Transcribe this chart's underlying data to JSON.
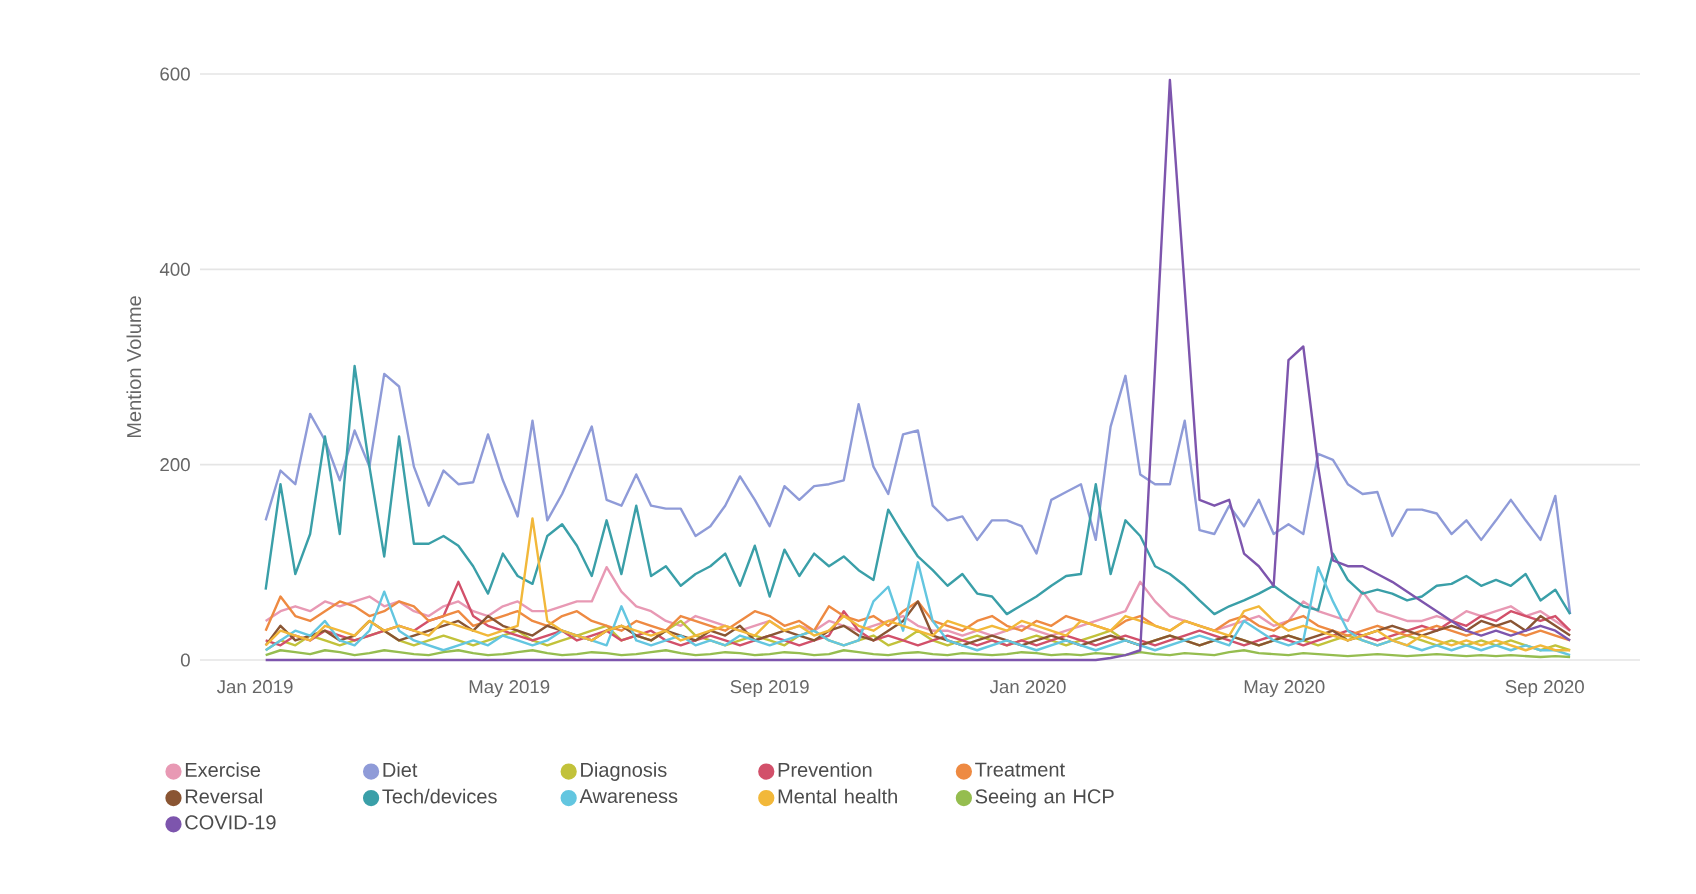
{
  "chart_data": {
    "type": "line",
    "ylabel": "Mention Volume",
    "x": [
      "2019-01-06",
      "2019-01-13",
      "2019-01-20",
      "2019-01-27",
      "2019-02-03",
      "2019-02-10",
      "2019-02-17",
      "2019-02-24",
      "2019-03-03",
      "2019-03-10",
      "2019-03-17",
      "2019-03-24",
      "2019-03-31",
      "2019-04-07",
      "2019-04-14",
      "2019-04-21",
      "2019-04-28",
      "2019-05-05",
      "2019-05-12",
      "2019-05-19",
      "2019-05-26",
      "2019-06-02",
      "2019-06-09",
      "2019-06-16",
      "2019-06-23",
      "2019-06-30",
      "2019-07-07",
      "2019-07-14",
      "2019-07-21",
      "2019-07-28",
      "2019-08-04",
      "2019-08-11",
      "2019-08-18",
      "2019-08-25",
      "2019-09-01",
      "2019-09-08",
      "2019-09-15",
      "2019-09-22",
      "2019-09-29",
      "2019-10-06",
      "2019-10-13",
      "2019-10-20",
      "2019-10-27",
      "2019-11-03",
      "2019-11-10",
      "2019-11-17",
      "2019-11-24",
      "2019-12-01",
      "2019-12-08",
      "2019-12-15",
      "2019-12-22",
      "2019-12-29",
      "2020-01-05",
      "2020-01-12",
      "2020-01-19",
      "2020-01-26",
      "2020-02-02",
      "2020-02-09",
      "2020-02-16",
      "2020-02-23",
      "2020-03-01",
      "2020-03-08",
      "2020-03-15",
      "2020-03-22",
      "2020-03-29",
      "2020-04-05",
      "2020-04-12",
      "2020-04-19",
      "2020-04-26",
      "2020-05-03",
      "2020-05-10",
      "2020-05-17",
      "2020-05-24",
      "2020-05-31",
      "2020-06-07",
      "2020-06-14",
      "2020-06-21",
      "2020-06-28",
      "2020-07-05",
      "2020-07-12",
      "2020-07-19",
      "2020-07-26",
      "2020-08-02",
      "2020-08-09",
      "2020-08-16",
      "2020-08-23",
      "2020-08-30",
      "2020-09-06",
      "2020-09-13"
    ],
    "xlim": [
      "2018-12-06",
      "2020-10-16"
    ],
    "xticks": [
      {
        "value": "2019-01-01",
        "label": "Jan 2019"
      },
      {
        "value": "2019-05-01",
        "label": "May 2019"
      },
      {
        "value": "2019-09-01",
        "label": "Sep 2019"
      },
      {
        "value": "2020-01-01",
        "label": "Jan 2020"
      },
      {
        "value": "2020-05-01",
        "label": "May 2020"
      },
      {
        "value": "2020-09-01",
        "label": "Sep 2020"
      }
    ],
    "ylim": [
      0,
      600
    ],
    "yticks": [
      0,
      200,
      400,
      600
    ],
    "grid": "y",
    "legend": "bottom",
    "series": [
      {
        "name": "Exercise",
        "color": "#e899b4",
        "values": [
          40,
          50,
          55,
          50,
          60,
          55,
          60,
          65,
          55,
          60,
          50,
          45,
          55,
          60,
          50,
          45,
          55,
          60,
          50,
          50,
          55,
          60,
          60,
          95,
          70,
          55,
          50,
          40,
          35,
          45,
          40,
          35,
          30,
          35,
          40,
          30,
          35,
          30,
          40,
          35,
          30,
          35,
          40,
          45,
          35,
          30,
          30,
          25,
          30,
          25,
          30,
          35,
          30,
          25,
          30,
          35,
          40,
          45,
          50,
          80,
          60,
          45,
          40,
          35,
          30,
          35,
          40,
          45,
          35,
          40,
          60,
          50,
          45,
          40,
          70,
          50,
          45,
          40,
          40,
          45,
          40,
          50,
          45,
          50,
          55,
          45,
          50,
          40,
          30
        ]
      },
      {
        "name": "Diet",
        "color": "#8f9bd8",
        "values": [
          143,
          194,
          180,
          252,
          225,
          184,
          235,
          198,
          293,
          280,
          198,
          158,
          194,
          180,
          182,
          231,
          184,
          147,
          245,
          143,
          170,
          204,
          239,
          164,
          158,
          190,
          158,
          155,
          155,
          127,
          137,
          158,
          188,
          164,
          137,
          178,
          164,
          178,
          180,
          184,
          262,
          198,
          170,
          231,
          235,
          158,
          143,
          147,
          123,
          143,
          143,
          137,
          109,
          164,
          172,
          180,
          123,
          239,
          291,
          190,
          180,
          180,
          245,
          133,
          129,
          158,
          137,
          164,
          129,
          139,
          129,
          211,
          205,
          180,
          170,
          172,
          127,
          154,
          154,
          150,
          129,
          143,
          123,
          143,
          164,
          143,
          123,
          168,
          47
        ]
      },
      {
        "name": "Diagnosis",
        "color": "#c2c23a",
        "values": [
          10,
          20,
          15,
          25,
          20,
          15,
          20,
          25,
          30,
          20,
          15,
          20,
          25,
          20,
          15,
          20,
          25,
          30,
          20,
          15,
          20,
          25,
          30,
          35,
          20,
          25,
          20,
          30,
          40,
          25,
          20,
          15,
          20,
          25,
          20,
          15,
          25,
          30,
          20,
          15,
          20,
          25,
          15,
          20,
          30,
          20,
          15,
          20,
          25,
          20,
          15,
          20,
          25,
          20,
          15,
          20,
          25,
          30,
          20,
          15,
          20,
          25,
          20,
          15,
          20,
          25,
          20,
          15,
          20,
          25,
          20,
          15,
          20,
          25,
          20,
          15,
          20,
          25,
          20,
          15,
          20,
          15,
          20,
          15,
          20,
          15,
          10,
          15,
          10
        ]
      },
      {
        "name": "Prevention",
        "color": "#d2506a",
        "values": [
          20,
          15,
          25,
          20,
          30,
          25,
          20,
          25,
          30,
          35,
          30,
          40,
          45,
          80,
          45,
          35,
          30,
          25,
          20,
          25,
          30,
          20,
          25,
          30,
          20,
          25,
          30,
          20,
          15,
          20,
          25,
          20,
          15,
          20,
          25,
          20,
          15,
          20,
          25,
          50,
          30,
          20,
          25,
          20,
          15,
          20,
          25,
          20,
          15,
          20,
          15,
          20,
          15,
          20,
          25,
          20,
          15,
          20,
          25,
          20,
          15,
          20,
          25,
          30,
          25,
          20,
          15,
          20,
          25,
          20,
          15,
          20,
          25,
          30,
          25,
          20,
          25,
          30,
          35,
          30,
          40,
          35,
          45,
          40,
          50,
          45,
          40,
          45,
          30
        ]
      },
      {
        "name": "Treatment",
        "color": "#ee8a42",
        "values": [
          30,
          65,
          45,
          40,
          50,
          60,
          55,
          45,
          50,
          60,
          55,
          40,
          45,
          50,
          35,
          40,
          45,
          50,
          40,
          35,
          45,
          50,
          40,
          35,
          30,
          40,
          35,
          30,
          45,
          40,
          35,
          30,
          40,
          50,
          45,
          35,
          40,
          30,
          55,
          45,
          40,
          45,
          35,
          50,
          60,
          40,
          35,
          30,
          40,
          45,
          35,
          30,
          40,
          35,
          45,
          40,
          35,
          30,
          40,
          45,
          35,
          30,
          40,
          35,
          30,
          40,
          45,
          35,
          30,
          40,
          45,
          35,
          30,
          25,
          30,
          35,
          30,
          25,
          30,
          35,
          30,
          25,
          30,
          35,
          30,
          25,
          30,
          25,
          20
        ]
      },
      {
        "name": "Reversal",
        "color": "#8a5533",
        "values": [
          15,
          35,
          20,
          25,
          30,
          20,
          25,
          40,
          30,
          20,
          25,
          30,
          35,
          40,
          30,
          45,
          35,
          30,
          25,
          35,
          30,
          25,
          20,
          30,
          35,
          25,
          20,
          30,
          25,
          20,
          30,
          25,
          35,
          20,
          25,
          30,
          25,
          20,
          30,
          35,
          25,
          20,
          30,
          40,
          60,
          25,
          20,
          15,
          20,
          25,
          20,
          15,
          20,
          25,
          20,
          15,
          20,
          25,
          20,
          15,
          20,
          25,
          20,
          15,
          20,
          25,
          20,
          15,
          20,
          25,
          20,
          25,
          30,
          20,
          25,
          30,
          35,
          30,
          25,
          30,
          35,
          30,
          40,
          35,
          40,
          30,
          45,
          35,
          25
        ]
      },
      {
        "name": "Tech/devices",
        "color": "#3a9fa8",
        "values": [
          72,
          180,
          88,
          129,
          229,
          129,
          301,
          198,
          106,
          229,
          119,
          119,
          127,
          117,
          96,
          68,
          109,
          86,
          78,
          127,
          139,
          117,
          86,
          143,
          88,
          158,
          86,
          96,
          76,
          88,
          96,
          109,
          76,
          117,
          65,
          113,
          86,
          109,
          96,
          106,
          92,
          82,
          154,
          129,
          106,
          92,
          76,
          88,
          68,
          65,
          47,
          56,
          65,
          76,
          86,
          88,
          180,
          88,
          143,
          127,
          96,
          88,
          76,
          61,
          47,
          55,
          61,
          68,
          76,
          65,
          55,
          51,
          109,
          82,
          68,
          72,
          68,
          61,
          65,
          76,
          78,
          86,
          76,
          82,
          76,
          88,
          61,
          72,
          47
        ]
      },
      {
        "name": "Awareness",
        "color": "#63c6e0",
        "values": [
          10,
          20,
          30,
          25,
          40,
          20,
          15,
          30,
          70,
          30,
          20,
          15,
          10,
          15,
          20,
          15,
          25,
          20,
          15,
          20,
          30,
          25,
          20,
          15,
          55,
          20,
          15,
          20,
          25,
          15,
          20,
          15,
          25,
          20,
          15,
          20,
          25,
          30,
          20,
          15,
          20,
          60,
          75,
          30,
          100,
          40,
          20,
          15,
          10,
          15,
          20,
          15,
          10,
          15,
          20,
          15,
          10,
          15,
          20,
          15,
          10,
          15,
          20,
          25,
          20,
          15,
          40,
          30,
          20,
          15,
          20,
          95,
          60,
          30,
          20,
          15,
          20,
          15,
          10,
          15,
          10,
          15,
          10,
          15,
          10,
          15,
          10,
          10,
          5
        ]
      },
      {
        "name": "Mental health",
        "color": "#f2b83a",
        "values": [
          15,
          30,
          25,
          20,
          35,
          30,
          25,
          40,
          30,
          35,
          30,
          25,
          40,
          35,
          30,
          25,
          30,
          35,
          145,
          40,
          30,
          25,
          20,
          30,
          35,
          30,
          25,
          30,
          20,
          25,
          30,
          35,
          30,
          25,
          40,
          30,
          35,
          25,
          30,
          45,
          35,
          30,
          40,
          35,
          30,
          25,
          40,
          35,
          30,
          35,
          30,
          40,
          35,
          30,
          25,
          40,
          35,
          30,
          45,
          40,
          35,
          30,
          40,
          35,
          30,
          25,
          50,
          55,
          40,
          30,
          35,
          30,
          25,
          20,
          25,
          30,
          20,
          15,
          25,
          20,
          15,
          20,
          15,
          20,
          15,
          10,
          15,
          10,
          10
        ]
      },
      {
        "name": "Seeing an HCP",
        "color": "#95bd4f",
        "values": [
          5,
          10,
          8,
          6,
          10,
          8,
          5,
          7,
          10,
          8,
          6,
          5,
          8,
          10,
          7,
          5,
          6,
          8,
          10,
          7,
          5,
          6,
          8,
          7,
          5,
          6,
          8,
          10,
          7,
          5,
          6,
          8,
          7,
          5,
          6,
          8,
          7,
          5,
          6,
          10,
          8,
          6,
          5,
          7,
          8,
          6,
          5,
          7,
          6,
          5,
          6,
          8,
          7,
          5,
          6,
          5,
          7,
          6,
          5,
          8,
          6,
          5,
          7,
          6,
          5,
          8,
          10,
          7,
          6,
          5,
          7,
          6,
          5,
          4,
          5,
          6,
          5,
          4,
          5,
          6,
          5,
          4,
          5,
          4,
          5,
          4,
          3,
          4,
          3
        ]
      },
      {
        "name": "COVID-19",
        "color": "#7d55ad",
        "values": [
          0,
          0,
          0,
          0,
          0,
          0,
          0,
          0,
          0,
          0,
          0,
          0,
          0,
          0,
          0,
          0,
          0,
          0,
          0,
          0,
          0,
          0,
          0,
          0,
          0,
          0,
          0,
          0,
          0,
          0,
          0,
          0,
          0,
          0,
          0,
          0,
          0,
          0,
          0,
          0,
          0,
          0,
          0,
          0,
          0,
          0,
          0,
          0,
          0,
          0,
          0,
          0,
          0,
          0,
          0,
          0,
          0,
          2,
          5,
          10,
          300,
          594,
          380,
          164,
          158,
          164,
          109,
          96,
          76,
          307,
          321,
          198,
          102,
          96,
          96,
          88,
          80,
          70,
          60,
          50,
          40,
          30,
          25,
          30,
          25,
          30,
          35,
          30,
          20
        ]
      }
    ]
  }
}
